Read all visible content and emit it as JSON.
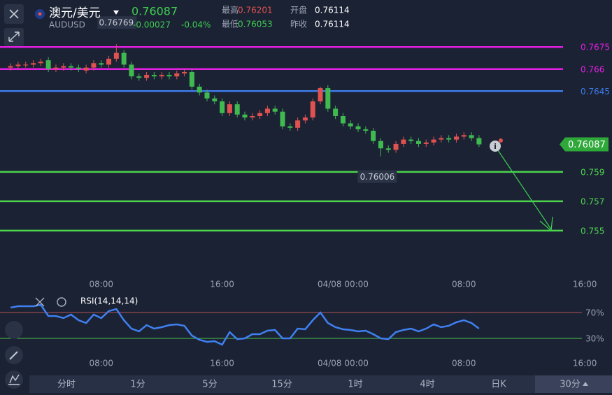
{
  "header": {
    "name": "澳元/美元",
    "symbol": "AUDUSD",
    "change": "-0.00027",
    "change_pct": "-0.04%",
    "stats": [
      {
        "label": "最高",
        "value": "0.76201"
      },
      {
        "label": "最低",
        "value": "0.76053"
      },
      {
        "label": "开盘",
        "value": "0.76114"
      },
      {
        "label": "昨收",
        "value": "0.76114"
      }
    ]
  },
  "chart_data": [
    {
      "type": "candlestick",
      "up_color": "#e0524f",
      "down_color": "#3fb950",
      "last_price": 0.76087,
      "x": [
        0,
        1,
        2,
        3,
        4,
        5,
        6,
        7,
        8,
        9,
        10,
        11,
        12,
        13,
        14,
        15,
        16,
        17,
        18,
        19,
        20,
        21,
        22,
        23,
        24,
        25,
        26,
        27,
        28,
        29,
        30,
        31,
        32,
        33,
        34,
        35,
        36,
        37,
        38,
        39,
        40,
        41,
        42,
        43,
        44,
        45,
        46,
        47,
        48,
        49,
        50,
        51,
        52,
        53,
        54,
        55,
        56,
        57,
        58,
        59,
        60,
        61,
        62
      ],
      "open": [
        0.7661,
        0.7662,
        0.7663,
        0.7663,
        0.7664,
        0.7666,
        0.766,
        0.7661,
        0.7662,
        0.7661,
        0.7659,
        0.7661,
        0.7664,
        0.7663,
        0.7667,
        0.7671,
        0.7663,
        0.7655,
        0.7654,
        0.7656,
        0.7655,
        0.7656,
        0.7655,
        0.7657,
        0.7658,
        0.7648,
        0.7644,
        0.764,
        0.7638,
        0.763,
        0.7636,
        0.7629,
        0.7627,
        0.7628,
        0.763,
        0.7633,
        0.7631,
        0.7621,
        0.762,
        0.7625,
        0.7627,
        0.7638,
        0.7647,
        0.7633,
        0.7628,
        0.7623,
        0.7621,
        0.7619,
        0.7618,
        0.7611,
        0.7606,
        0.7605,
        0.7609,
        0.7612,
        0.7611,
        0.7609,
        0.761,
        0.7612,
        0.7613,
        0.7612,
        0.7614,
        0.7615,
        0.7613
      ],
      "high": [
        0.7664,
        0.7665,
        0.7665,
        0.7666,
        0.7667,
        0.7668,
        0.7663,
        0.7664,
        0.7664,
        0.7663,
        0.7663,
        0.7666,
        0.7666,
        0.7669,
        0.76769,
        0.7673,
        0.7665,
        0.7657,
        0.7658,
        0.7658,
        0.7658,
        0.7658,
        0.7659,
        0.766,
        0.766,
        0.765,
        0.7646,
        0.7642,
        0.764,
        0.7638,
        0.7638,
        0.7631,
        0.763,
        0.7632,
        0.7635,
        0.7635,
        0.7633,
        0.7623,
        0.7627,
        0.7629,
        0.764,
        0.7648,
        0.7649,
        0.7635,
        0.763,
        0.7625,
        0.7623,
        0.7621,
        0.762,
        0.7613,
        0.7608,
        0.7611,
        0.7614,
        0.7614,
        0.7613,
        0.7612,
        0.7614,
        0.7615,
        0.7615,
        0.7616,
        0.7617,
        0.7617,
        0.7615
      ],
      "low": [
        0.7659,
        0.766,
        0.7661,
        0.7661,
        0.7662,
        0.7658,
        0.7658,
        0.7659,
        0.7659,
        0.7658,
        0.7657,
        0.7659,
        0.7661,
        0.7661,
        0.7665,
        0.7661,
        0.7653,
        0.7652,
        0.7652,
        0.7653,
        0.7653,
        0.7653,
        0.7653,
        0.7655,
        0.7646,
        0.7642,
        0.7638,
        0.7636,
        0.7628,
        0.7628,
        0.7627,
        0.7625,
        0.7625,
        0.7626,
        0.7628,
        0.7629,
        0.7619,
        0.7618,
        0.7618,
        0.7623,
        0.7625,
        0.7636,
        0.7631,
        0.7626,
        0.7621,
        0.7619,
        0.7617,
        0.7616,
        0.7609,
        0.76006,
        0.7603,
        0.7603,
        0.7607,
        0.7609,
        0.7607,
        0.7607,
        0.7608,
        0.761,
        0.761,
        0.761,
        0.7612,
        0.7611,
        0.7607
      ],
      "close": [
        0.7662,
        0.7663,
        0.7663,
        0.7664,
        0.7665,
        0.766,
        0.7661,
        0.7662,
        0.7661,
        0.766,
        0.7661,
        0.7664,
        0.7663,
        0.7667,
        0.7671,
        0.7663,
        0.7655,
        0.7654,
        0.7656,
        0.7655,
        0.7656,
        0.7655,
        0.7657,
        0.7658,
        0.7648,
        0.7644,
        0.764,
        0.7638,
        0.763,
        0.7636,
        0.7629,
        0.7627,
        0.7628,
        0.763,
        0.7633,
        0.7631,
        0.7621,
        0.762,
        0.7625,
        0.7627,
        0.7638,
        0.7647,
        0.7633,
        0.7628,
        0.7623,
        0.7621,
        0.7619,
        0.7618,
        0.7611,
        0.7606,
        0.7605,
        0.7609,
        0.7612,
        0.7611,
        0.7609,
        0.761,
        0.7612,
        0.7613,
        0.7612,
        0.7614,
        0.7615,
        0.7613,
        0.76087
      ],
      "xlim": [
        -1.4,
        79.6
      ],
      "ylim": [
        0.7519,
        0.7707
      ],
      "xticks": [
        {
          "value": 12,
          "label": "08:00"
        },
        {
          "value": 28,
          "label": "16:00"
        },
        {
          "value": 44,
          "label": "04/08 00:00"
        },
        {
          "value": 60,
          "label": "08:00"
        },
        {
          "value": 76,
          "label": "16:00"
        }
      ],
      "levels": [
        {
          "value": 0.7675,
          "color": "#e11fe0"
        },
        {
          "value": 0.766,
          "color": "#e11fe0"
        },
        {
          "value": 0.7645,
          "color": "#3d7be8"
        },
        {
          "value": 0.759,
          "color": "#4cd44c"
        },
        {
          "value": 0.757,
          "color": "#4cd44c"
        },
        {
          "value": 0.755,
          "color": "#4cd44c"
        }
      ]
    },
    {
      "type": "line",
      "title": "RSI(14,14,14)",
      "x": [
        0,
        1,
        2,
        3,
        4,
        5,
        6,
        7,
        8,
        9,
        10,
        11,
        12,
        13,
        14,
        15,
        16,
        17,
        18,
        19,
        20,
        21,
        22,
        23,
        24,
        25,
        26,
        27,
        28,
        29,
        30,
        31,
        32,
        33,
        34,
        35,
        36,
        37,
        38,
        39,
        40,
        41,
        42,
        43,
        44,
        45,
        46,
        47,
        48,
        49,
        50,
        51,
        52,
        53,
        54,
        55,
        56,
        57,
        58,
        59,
        60,
        61,
        62
      ],
      "series": [
        {
          "color": "#3f80f0",
          "values": [
            77.6,
            79.7,
            79.7,
            79.7,
            81.9,
            64.6,
            64.6,
            61.4,
            66.8,
            58.1,
            53.8,
            66.8,
            61.4,
            72.2,
            75.4,
            58.1,
            45.1,
            40.8,
            50.5,
            45.1,
            47.3,
            50.5,
            51.6,
            49.5,
            34.3,
            27.8,
            24.6,
            25.7,
            20.3,
            39.7,
            28.9,
            30,
            36.5,
            36.5,
            41.9,
            43,
            30,
            30,
            45.1,
            44.1,
            58.1,
            70,
            53.8,
            47.3,
            44.1,
            43,
            40.8,
            41.9,
            36.5,
            30,
            28.9,
            39.7,
            43,
            45.1,
            40.8,
            45.1,
            51.6,
            47.3,
            49.5,
            54.9,
            58.1,
            53.8,
            45.1
          ]
        }
      ],
      "xlim": [
        -1.4,
        79.6
      ],
      "ylim": [
        12.7,
        93.8
      ],
      "xticks": [
        {
          "value": 12,
          "label": "08:00"
        },
        {
          "value": 28,
          "label": "16:00"
        },
        {
          "value": 44,
          "label": "04/08 00:00"
        },
        {
          "value": 60,
          "label": "08:00"
        },
        {
          "value": 76,
          "label": "16:00"
        }
      ],
      "yticks": [
        {
          "value": 70,
          "label": "70%",
          "color": "#b35454"
        },
        {
          "value": 30,
          "label": "30%",
          "color": "#4cc44c"
        }
      ]
    }
  ],
  "timeframes": [
    "分时",
    "1分",
    "5分",
    "15分",
    "1时",
    "4时",
    "日K"
  ],
  "selected_timeframe": "30分"
}
